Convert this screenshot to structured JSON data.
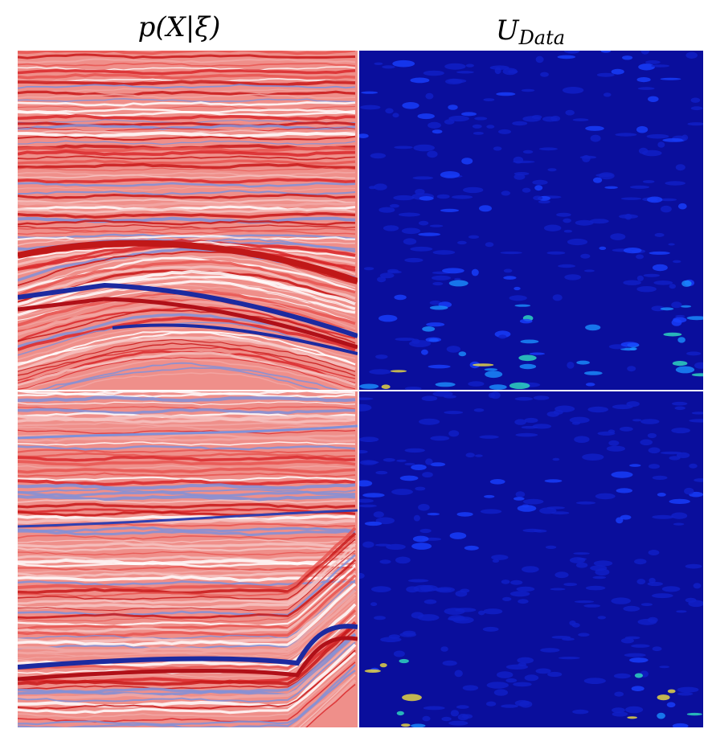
{
  "columns": [
    {
      "title": "p(X|ξ)"
    },
    {
      "title": "U",
      "subscript": "Data"
    }
  ]
}
